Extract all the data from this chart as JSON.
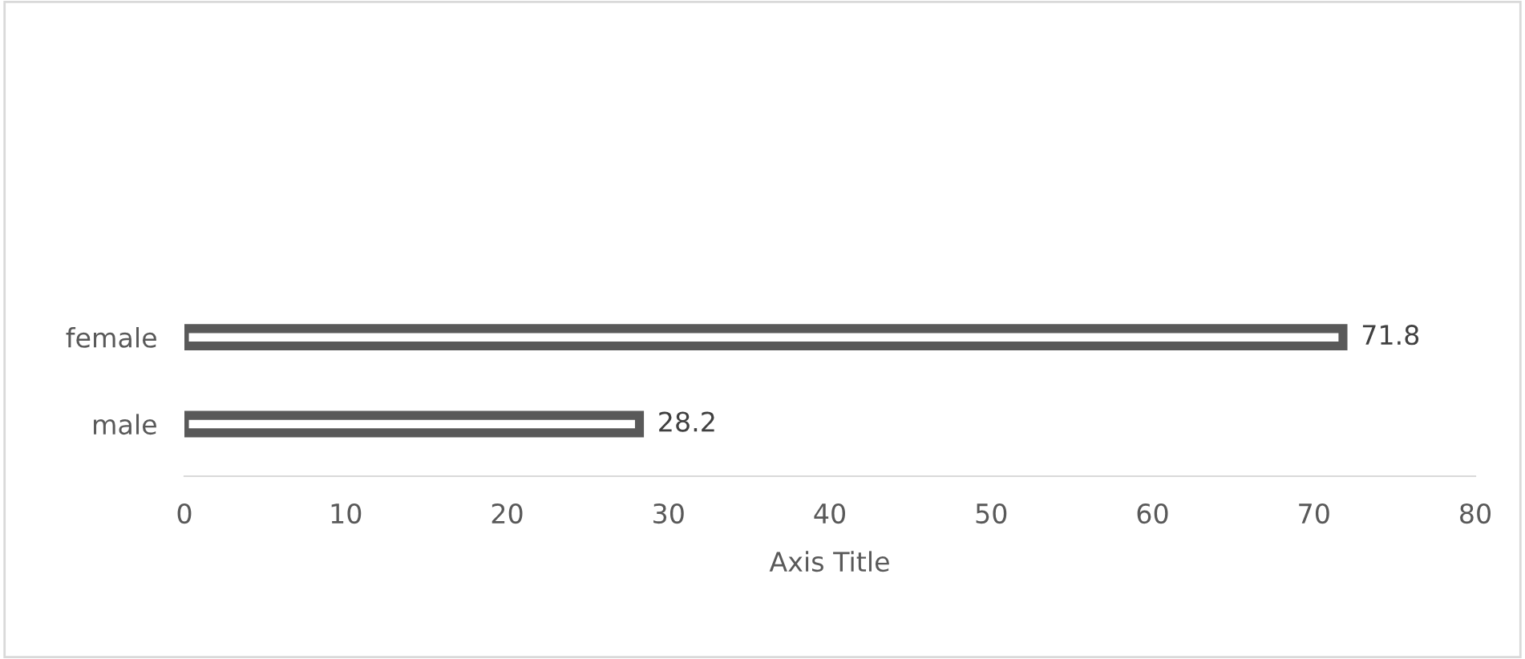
{
  "chart_data": {
    "type": "bar",
    "orientation": "horizontal",
    "xlabel": "Axis Title",
    "categories": [
      "female",
      "male"
    ],
    "series": [
      {
        "color": "#595959",
        "values": [
          71.8,
          28.2
        ]
      }
    ],
    "xlim": [
      0,
      80
    ],
    "xticks": [
      0,
      10,
      20,
      30,
      40,
      50,
      60,
      70,
      80
    ],
    "data_labels": true,
    "grid": false,
    "legend": false
  }
}
